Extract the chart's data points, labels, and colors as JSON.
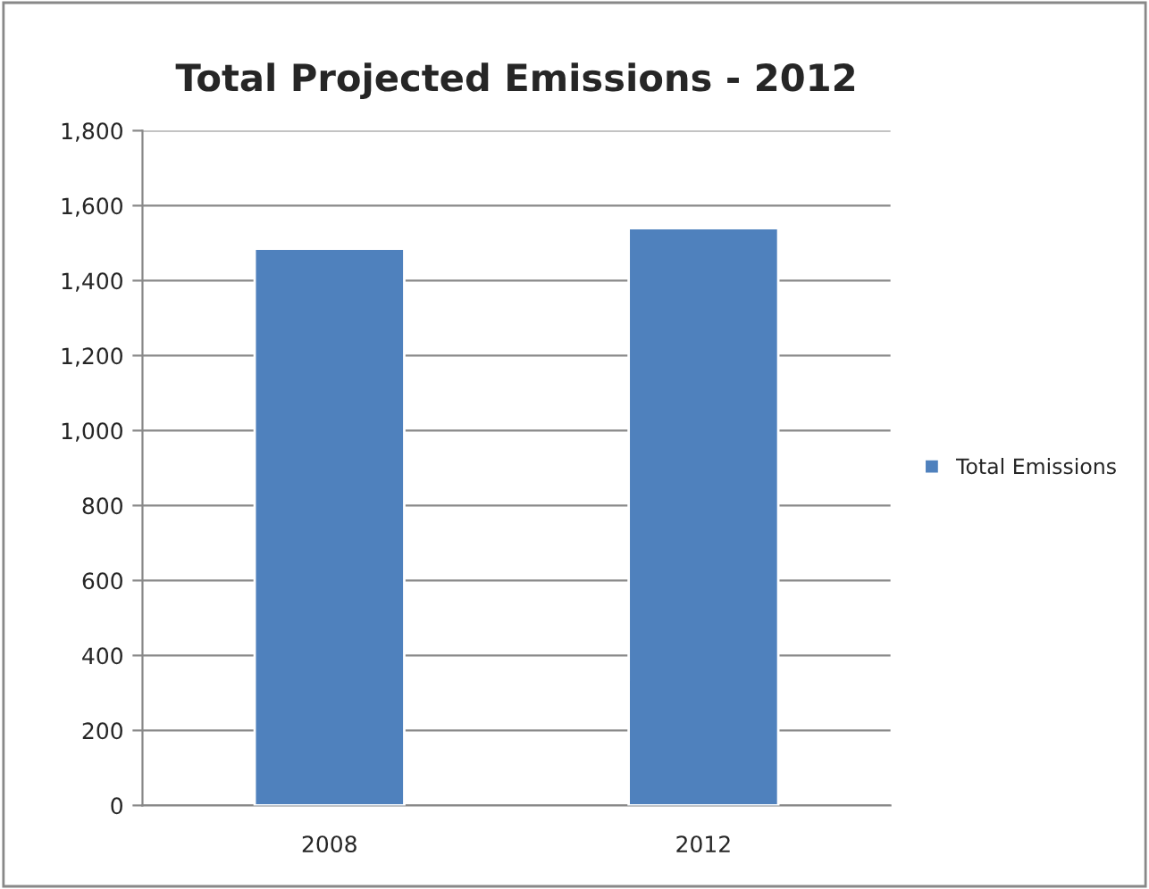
{
  "chart_data": {
    "type": "bar",
    "title": "Total Projected Emissions - 2012",
    "categories": [
      "2008",
      "2012"
    ],
    "series": [
      {
        "name": "Total Emissions",
        "color": "#4f81bd",
        "values": [
          1485,
          1540
        ]
      }
    ],
    "ylim": [
      0,
      1800
    ],
    "yticks": [
      {
        "value": 0,
        "label": "0"
      },
      {
        "value": 200,
        "label": "200"
      },
      {
        "value": 400,
        "label": "400"
      },
      {
        "value": 600,
        "label": "600"
      },
      {
        "value": 800,
        "label": "800"
      },
      {
        "value": 1000,
        "label": "1,000"
      },
      {
        "value": 1200,
        "label": "1,200"
      },
      {
        "value": 1400,
        "label": "1,400"
      },
      {
        "value": 1600,
        "label": "1,600"
      },
      {
        "value": 1800,
        "label": "1,800"
      }
    ],
    "grid": "y",
    "legend": "right"
  }
}
